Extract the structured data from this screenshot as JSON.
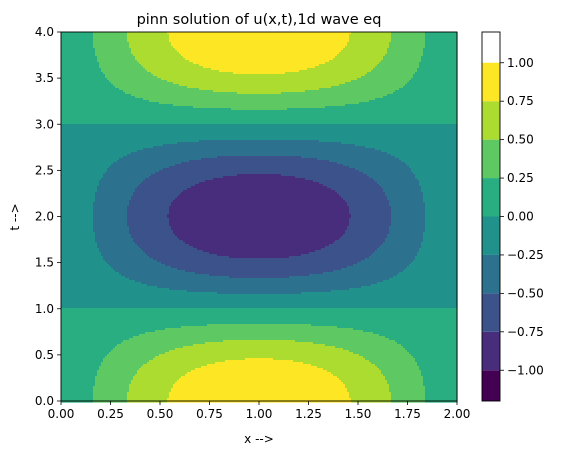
{
  "chart_data": {
    "type": "contour",
    "title": "pinn solution of u(x,t),1d wave eq",
    "xlabel": "x -->",
    "ylabel": "t -->",
    "xlim": [
      0.0,
      2.0
    ],
    "ylim": [
      0.0,
      4.0
    ],
    "x_ticks": [
      "0.00",
      "0.25",
      "0.50",
      "0.75",
      "1.00",
      "1.25",
      "1.50",
      "1.75",
      "2.00"
    ],
    "y_ticks": [
      "0.0",
      "0.5",
      "1.0",
      "1.5",
      "2.0",
      "2.5",
      "3.0",
      "3.5",
      "4.0"
    ],
    "x_tick_values": [
      0.0,
      0.25,
      0.5,
      0.75,
      1.0,
      1.25,
      1.5,
      1.75,
      2.0
    ],
    "y_tick_values": [
      0.0,
      0.5,
      1.0,
      1.5,
      2.0,
      2.5,
      3.0,
      3.5,
      4.0
    ],
    "function": "u(x,t) = sin(pi*x/2) * cos(pi*t/2)",
    "levels": [
      -1.2,
      -1.0,
      -0.75,
      -0.5,
      -0.25,
      0.0,
      0.25,
      0.5,
      0.75,
      1.0,
      1.2
    ],
    "level_colors": [
      "#440154",
      "#46327e",
      "#365c8d",
      "#277f8e",
      "#1fa187",
      "#4ac16d",
      "#a0da39",
      "#fde725",
      "#fde725",
      "#fde725"
    ],
    "band_colors": [
      "#440154",
      "#472d7b",
      "#3b528b",
      "#2c728e",
      "#21918c",
      "#28ae80",
      "#5ec962",
      "#addc30",
      "#fde725"
    ],
    "colorbar": {
      "ticks": [
        "−1.00",
        "−0.75",
        "−0.50",
        "−0.25",
        "0.00",
        "0.25",
        "0.50",
        "0.75",
        "1.00"
      ],
      "tick_values": [
        -1.0,
        -0.75,
        -0.5,
        -0.25,
        0.0,
        0.25,
        0.5,
        0.75,
        1.0
      ],
      "range": [
        -1.2,
        1.2
      ]
    }
  }
}
